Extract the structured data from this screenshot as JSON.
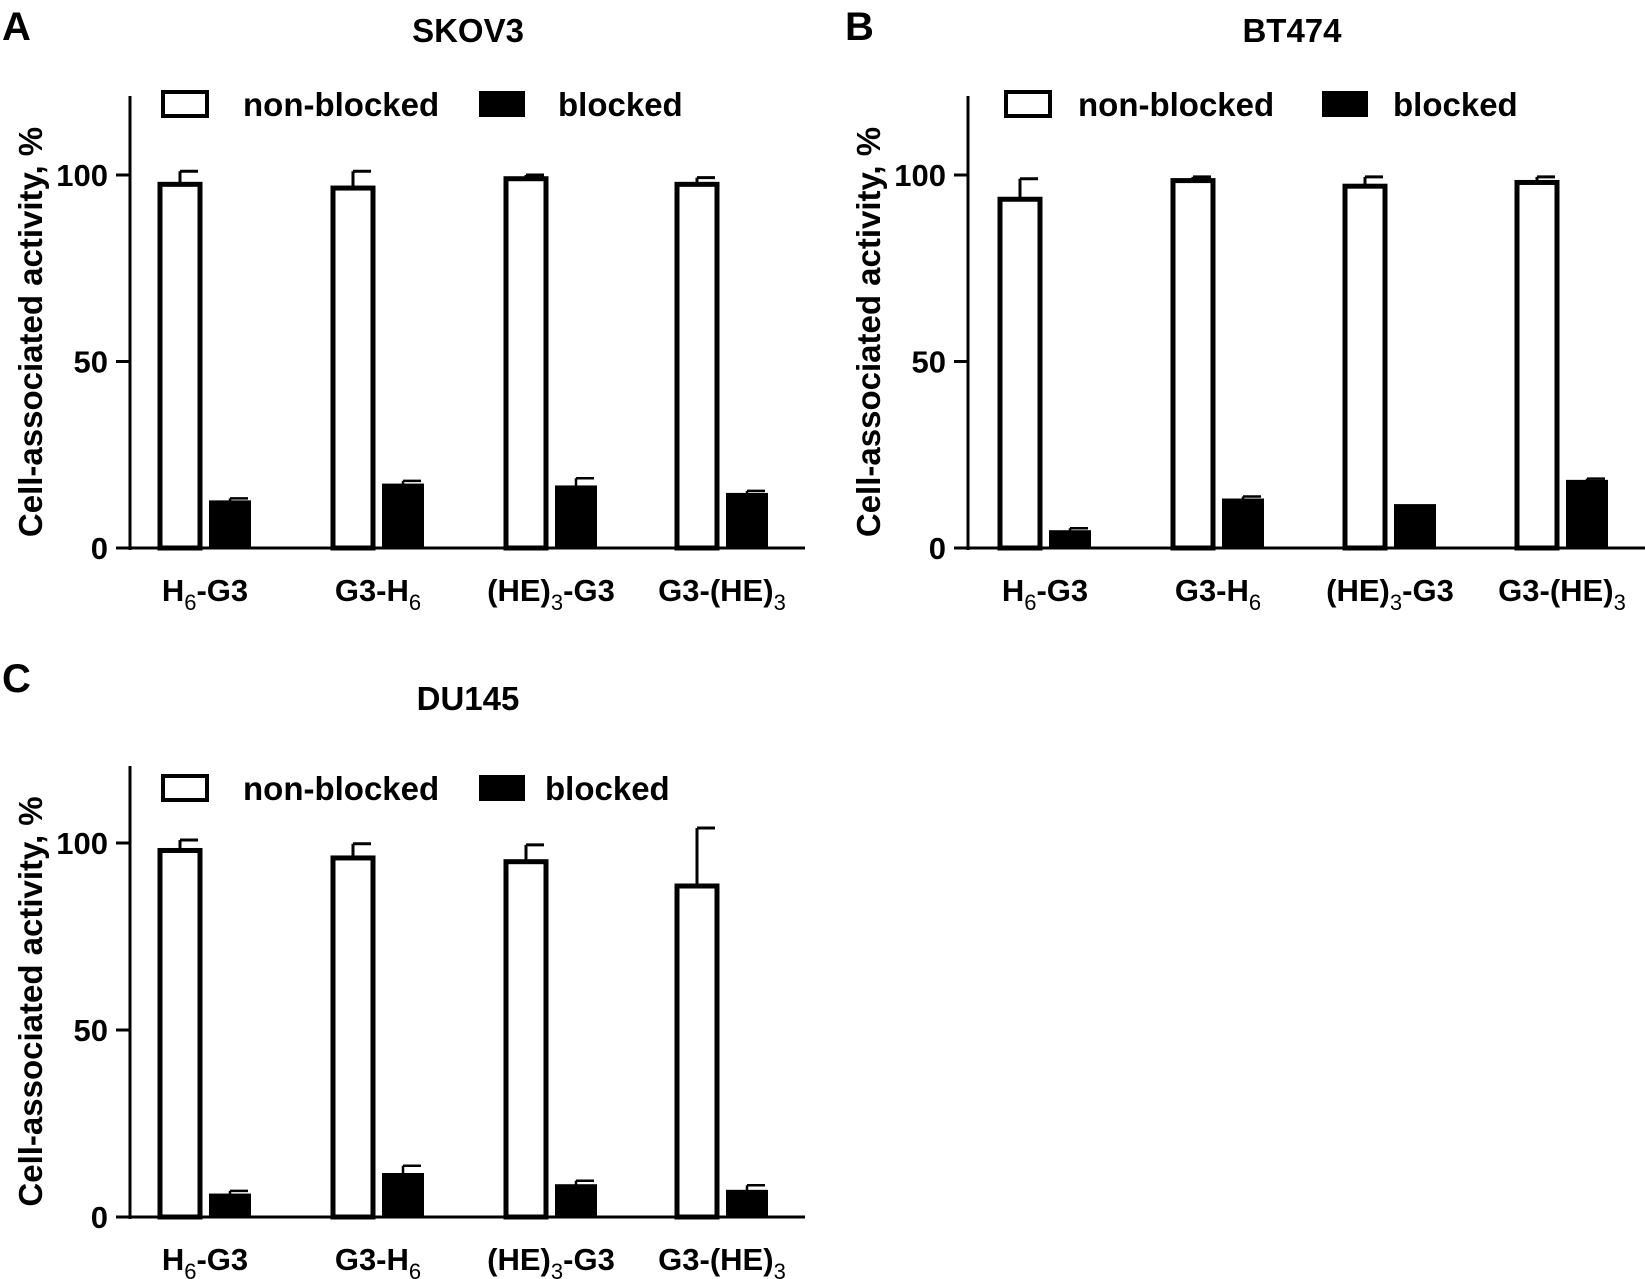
{
  "chart_data": [
    {
      "panel_label": "A",
      "type": "bar",
      "title": "SKOV3",
      "ylabel": "Cell-associated activity, %",
      "ylim": [
        0,
        120
      ],
      "yticks": [
        "0",
        "50",
        "100"
      ],
      "categories": [
        {
          "base": "H",
          "sub": "6",
          "rest": "-G3"
        },
        {
          "base": "G3-H",
          "sub": "6",
          "rest": ""
        },
        {
          "base": "(HE)",
          "sub": "3",
          "rest": "-G3"
        },
        {
          "base": "G3-(HE)",
          "sub": "3",
          "rest": ""
        }
      ],
      "legend": [
        "non-blocked",
        "blocked"
      ],
      "legend_position": "top",
      "series": [
        {
          "name": "non-blocked",
          "fill": "#ffffff",
          "values": [
            97.5,
            96.5,
            99.0,
            97.5
          ],
          "errors": [
            3.5,
            4.5,
            1.0,
            1.8
          ]
        },
        {
          "name": "blocked",
          "fill": "#000000",
          "values": [
            12.5,
            17.0,
            16.5,
            14.5
          ],
          "errors": [
            0.8,
            1.0,
            2.2,
            0.8
          ]
        }
      ]
    },
    {
      "panel_label": "B",
      "type": "bar",
      "title": "BT474",
      "ylabel": "Cell-associated activity, %",
      "ylim": [
        0,
        120
      ],
      "yticks": [
        "0",
        "50",
        "100"
      ],
      "categories": [
        {
          "base": "H",
          "sub": "6",
          "rest": "-G3"
        },
        {
          "base": "G3-H",
          "sub": "6",
          "rest": ""
        },
        {
          "base": "(HE)",
          "sub": "3",
          "rest": "-G3"
        },
        {
          "base": "G3-(HE)",
          "sub": "3",
          "rest": ""
        }
      ],
      "legend": [
        "non-blocked",
        "blocked"
      ],
      "legend_position": "top",
      "series": [
        {
          "name": "non-blocked",
          "fill": "#ffffff",
          "values": [
            93.5,
            98.5,
            97.0,
            98.0
          ],
          "errors": [
            5.5,
            1.0,
            2.5,
            1.5
          ]
        },
        {
          "name": "blocked",
          "fill": "#000000",
          "values": [
            4.5,
            13.0,
            11.5,
            18.0
          ],
          "errors": [
            0.8,
            0.8,
            0.0,
            0.6
          ]
        }
      ]
    },
    {
      "panel_label": "C",
      "type": "bar",
      "title": "DU145",
      "ylabel": "Cell-associated activity, %",
      "ylim": [
        0,
        120
      ],
      "yticks": [
        "0",
        "50",
        "100"
      ],
      "categories": [
        {
          "base": "H",
          "sub": "6",
          "rest": "-G3"
        },
        {
          "base": "G3-H",
          "sub": "6",
          "rest": ""
        },
        {
          "base": "(HE)",
          "sub": "3",
          "rest": "-G3"
        },
        {
          "base": "G3-(HE)",
          "sub": "3",
          "rest": ""
        }
      ],
      "legend": [
        "non-blocked",
        "blocked"
      ],
      "legend_position": "top",
      "series": [
        {
          "name": "non-blocked",
          "fill": "#ffffff",
          "values": [
            98.0,
            96.0,
            95.0,
            88.5
          ],
          "errors": [
            2.8,
            3.8,
            4.5,
            15.5
          ]
        },
        {
          "name": "blocked",
          "fill": "#000000",
          "values": [
            6.0,
            11.5,
            8.5,
            7.0
          ],
          "errors": [
            1.0,
            2.2,
            1.2,
            1.5
          ]
        }
      ]
    }
  ]
}
